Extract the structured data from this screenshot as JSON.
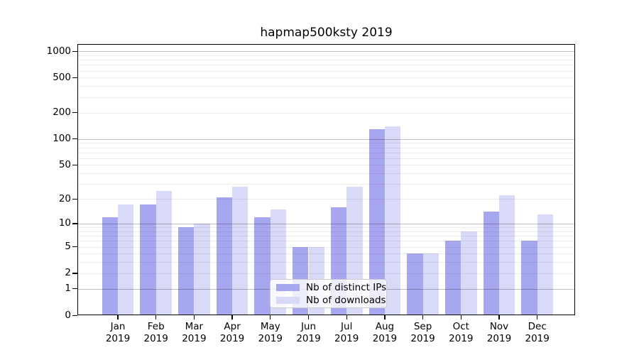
{
  "chart_data": {
    "type": "bar",
    "title": "hapmap500ksty 2019",
    "categories": [
      "Jan 2019",
      "Feb 2019",
      "Mar 2019",
      "Apr 2019",
      "May 2019",
      "Jun 2019",
      "Jul 2019",
      "Aug 2019",
      "Sep 2019",
      "Oct 2019",
      "Nov 2019",
      "Dec 2019"
    ],
    "series": [
      {
        "name": "Nb of distinct IPs",
        "color": "#a7a7f0",
        "values": [
          12,
          17,
          9,
          21,
          12,
          5,
          16,
          128,
          4,
          6,
          14,
          6
        ]
      },
      {
        "name": "Nb of downloads",
        "color": "#d9d9f8",
        "values": [
          17,
          25,
          10,
          28,
          15,
          5,
          28,
          138,
          4,
          8,
          22,
          13
        ]
      }
    ],
    "xlabel": "",
    "ylabel": "",
    "yscale": "log1p",
    "ylim": [
      0,
      1000
    ],
    "ytick_labels": [
      "0",
      "1",
      "2",
      "5",
      "10",
      "20",
      "50",
      "100",
      "200",
      "500",
      "1000"
    ],
    "ytick_values": [
      0,
      1,
      2,
      5,
      10,
      20,
      50,
      100,
      200,
      500,
      1000
    ],
    "major_grid_values": [
      1,
      10,
      100,
      1000
    ],
    "minor_grid_values": [
      2,
      3,
      4,
      5,
      6,
      7,
      8,
      9,
      20,
      30,
      40,
      50,
      60,
      70,
      80,
      90,
      200,
      300,
      400,
      500,
      600,
      700,
      800,
      900
    ],
    "grid": true,
    "grid_above_bars": true,
    "legend_position": "lower center",
    "colors": {
      "major_grid": "rgba(0,0,0,0.26)",
      "minor_grid": "rgba(0,0,0,0.07)",
      "axis": "#000000",
      "background": "#ffffff"
    }
  }
}
